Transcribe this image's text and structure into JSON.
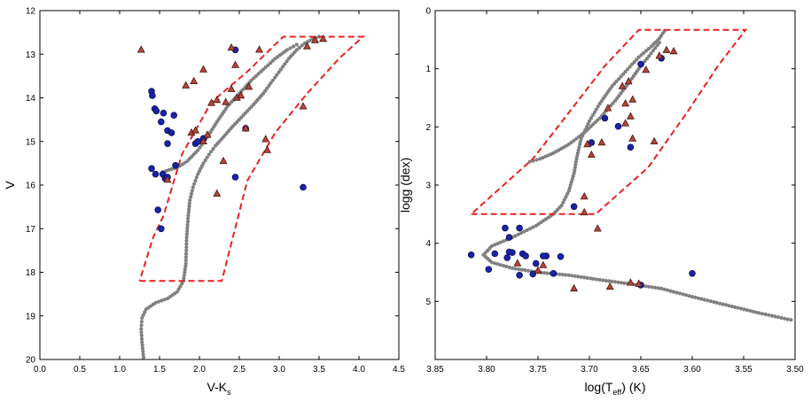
{
  "colors": {
    "track": "#808080",
    "box": "#e8211f",
    "circle_fill": "#1a23a8",
    "circle_edge": "#0b0f55",
    "triangle_fill": "#b5463a",
    "triangle_edge": "#4a1410"
  },
  "chart_data": [
    {
      "type": "scatter",
      "title": "",
      "xlabel_main": "V-K",
      "xlabel_sub": "s",
      "ylabel": "V",
      "xlim": [
        0.0,
        4.5
      ],
      "ylim": [
        20,
        12
      ],
      "x_ticks": [
        0.0,
        0.5,
        1.0,
        1.5,
        2.0,
        2.5,
        3.0,
        3.5,
        4.0,
        4.5
      ],
      "x_tick_labels": [
        "0.0",
        "0.5",
        "1.0",
        "1.5",
        "2.0",
        "2.5",
        "3.0",
        "3.5",
        "4.0",
        "4.5"
      ],
      "y_ticks": [
        12,
        13,
        14,
        15,
        16,
        17,
        18,
        19,
        20
      ],
      "y_tick_labels": [
        "12",
        "13",
        "14",
        "15",
        "16",
        "17",
        "18",
        "19",
        "20"
      ],
      "isochrone": [
        [
          1.3,
          19.95
        ],
        [
          1.28,
          19.6
        ],
        [
          1.27,
          19.3
        ],
        [
          1.28,
          19.05
        ],
        [
          1.33,
          18.85
        ],
        [
          1.45,
          18.7
        ],
        [
          1.6,
          18.6
        ],
        [
          1.72,
          18.45
        ],
        [
          1.8,
          18.2
        ],
        [
          1.83,
          17.8
        ],
        [
          1.84,
          17.2
        ],
        [
          1.86,
          16.7
        ],
        [
          1.88,
          16.35
        ],
        [
          1.92,
          16.05
        ],
        [
          1.98,
          15.75
        ],
        [
          2.05,
          15.5
        ],
        [
          2.12,
          15.3
        ],
        [
          2.2,
          15.1
        ],
        [
          2.3,
          14.9
        ],
        [
          2.42,
          14.65
        ],
        [
          2.55,
          14.4
        ],
        [
          2.68,
          14.15
        ],
        [
          2.8,
          13.9
        ],
        [
          2.92,
          13.6
        ],
        [
          3.02,
          13.35
        ],
        [
          3.12,
          13.1
        ],
        [
          3.22,
          12.9
        ],
        [
          3.32,
          12.75
        ],
        [
          3.42,
          12.65
        ],
        [
          3.5,
          12.6
        ]
      ],
      "branch": [
        [
          1.55,
          15.7
        ],
        [
          1.62,
          15.65
        ],
        [
          1.72,
          15.6
        ],
        [
          1.85,
          15.45
        ],
        [
          1.98,
          15.2
        ],
        [
          2.1,
          14.9
        ],
        [
          2.22,
          14.55
        ],
        [
          2.35,
          14.2
        ],
        [
          2.5,
          13.9
        ],
        [
          2.65,
          13.6
        ],
        [
          2.8,
          13.35
        ],
        [
          2.95,
          13.1
        ],
        [
          3.1,
          12.9
        ],
        [
          3.22,
          12.78
        ]
      ],
      "selection_box": [
        [
          1.25,
          18.2
        ],
        [
          2.28,
          18.2
        ],
        [
          2.6,
          15.9
        ],
        [
          2.95,
          14.8
        ],
        [
          3.35,
          13.9
        ],
        [
          3.75,
          13.1
        ],
        [
          4.05,
          12.6
        ],
        [
          3.05,
          12.6
        ],
        [
          2.6,
          13.4
        ],
        [
          2.15,
          14.1
        ],
        [
          1.78,
          15.3
        ],
        [
          1.55,
          16.7
        ],
        [
          1.42,
          17.2
        ],
        [
          1.25,
          18.2
        ]
      ],
      "series": [
        {
          "name": "circles",
          "marker": "circle",
          "points": [
            [
              1.4,
              13.85
            ],
            [
              1.41,
              13.95
            ],
            [
              1.44,
              14.25
            ],
            [
              1.46,
              14.3
            ],
            [
              1.52,
              14.55
            ],
            [
              1.55,
              14.35
            ],
            [
              1.6,
              14.75
            ],
            [
              1.6,
              15.05
            ],
            [
              1.65,
              14.8
            ],
            [
              1.68,
              14.4
            ],
            [
              1.4,
              15.62
            ],
            [
              1.45,
              15.75
            ],
            [
              1.54,
              15.75
            ],
            [
              1.57,
              15.85
            ],
            [
              1.6,
              15.82
            ],
            [
              1.7,
              15.55
            ],
            [
              1.95,
              15.05
            ],
            [
              1.98,
              15.0
            ],
            [
              2.05,
              14.93
            ],
            [
              2.45,
              12.9
            ],
            [
              2.58,
              14.7
            ],
            [
              2.45,
              15.82
            ],
            [
              3.3,
              16.05
            ],
            [
              1.48,
              16.57
            ],
            [
              1.52,
              17.0
            ]
          ]
        },
        {
          "name": "triangles",
          "marker": "triangle",
          "points": [
            [
              1.27,
              12.9
            ],
            [
              1.83,
              13.72
            ],
            [
              1.93,
              13.62
            ],
            [
              2.05,
              13.35
            ],
            [
              2.15,
              14.12
            ],
            [
              2.22,
              14.05
            ],
            [
              2.33,
              14.1
            ],
            [
              2.4,
              13.8
            ],
            [
              2.45,
              13.25
            ],
            [
              2.47,
              14.0
            ],
            [
              2.52,
              13.95
            ],
            [
              2.58,
              14.7
            ],
            [
              2.62,
              13.75
            ],
            [
              2.75,
              12.9
            ],
            [
              2.4,
              12.85
            ],
            [
              1.9,
              14.8
            ],
            [
              1.95,
              14.75
            ],
            [
              2.05,
              15.0
            ],
            [
              2.1,
              14.85
            ],
            [
              2.3,
              15.45
            ],
            [
              2.22,
              16.2
            ],
            [
              2.83,
              14.95
            ],
            [
              2.85,
              15.2
            ],
            [
              3.3,
              14.2
            ],
            [
              3.35,
              12.82
            ],
            [
              3.45,
              12.68
            ],
            [
              3.55,
              12.65
            ],
            [
              1.6,
              15.88
            ]
          ]
        }
      ]
    },
    {
      "type": "scatter",
      "title": "",
      "xlabel_main": "log(T",
      "xlabel_sub": "eff",
      "xlabel_end": ") (K)",
      "ylabel": "logg (dex)",
      "xlim": [
        3.85,
        3.5
      ],
      "ylim": [
        6,
        0
      ],
      "x_ticks": [
        3.85,
        3.8,
        3.75,
        3.7,
        3.65,
        3.6,
        3.55,
        3.5
      ],
      "x_tick_labels": [
        "3.85",
        "3.80",
        "3.75",
        "3.70",
        "3.65",
        "3.60",
        "3.55",
        "3.50"
      ],
      "y_ticks": [
        0,
        1,
        2,
        3,
        4,
        5
      ],
      "y_tick_labels": [
        "0",
        "1",
        "2",
        "3",
        "4",
        "5"
      ],
      "isochrone": [
        [
          3.504,
          5.32
        ],
        [
          3.535,
          5.2
        ],
        [
          3.57,
          5.05
        ],
        [
          3.6,
          4.92
        ],
        [
          3.63,
          4.78
        ],
        [
          3.66,
          4.7
        ],
        [
          3.69,
          4.63
        ],
        [
          3.72,
          4.55
        ],
        [
          3.75,
          4.5
        ],
        [
          3.775,
          4.43
        ],
        [
          3.795,
          4.33
        ],
        [
          3.803,
          4.2
        ],
        [
          3.795,
          4.05
        ],
        [
          3.775,
          3.9
        ],
        [
          3.752,
          3.7
        ],
        [
          3.735,
          3.5
        ],
        [
          3.727,
          3.35
        ],
        [
          3.72,
          3.1
        ],
        [
          3.715,
          2.8
        ],
        [
          3.712,
          2.5
        ],
        [
          3.708,
          2.2
        ],
        [
          3.7,
          1.9
        ],
        [
          3.69,
          1.6
        ],
        [
          3.678,
          1.3
        ],
        [
          3.665,
          1.05
        ],
        [
          3.652,
          0.8
        ],
        [
          3.64,
          0.62
        ],
        [
          3.632,
          0.48
        ],
        [
          3.627,
          0.35
        ]
      ],
      "branch": [
        [
          3.758,
          2.6
        ],
        [
          3.748,
          2.55
        ],
        [
          3.735,
          2.45
        ],
        [
          3.72,
          2.3
        ],
        [
          3.705,
          2.1
        ],
        [
          3.69,
          1.85
        ],
        [
          3.675,
          1.55
        ],
        [
          3.662,
          1.25
        ],
        [
          3.652,
          1.0
        ],
        [
          3.642,
          0.78
        ],
        [
          3.632,
          0.55
        ]
      ],
      "selection_box": [
        [
          3.815,
          3.5
        ],
        [
          3.694,
          3.5
        ],
        [
          3.643,
          2.7
        ],
        [
          3.605,
          1.75
        ],
        [
          3.575,
          0.95
        ],
        [
          3.548,
          0.33
        ],
        [
          3.652,
          0.33
        ],
        [
          3.685,
          0.95
        ],
        [
          3.722,
          1.8
        ],
        [
          3.755,
          2.55
        ],
        [
          3.815,
          3.5
        ]
      ],
      "series": [
        {
          "name": "circles",
          "marker": "circle",
          "points": [
            [
              3.65,
              0.92
            ],
            [
              3.63,
              0.82
            ],
            [
              3.685,
              1.85
            ],
            [
              3.672,
              1.99
            ],
            [
              3.698,
              2.27
            ],
            [
              3.66,
              2.35
            ],
            [
              3.715,
              3.37
            ],
            [
              3.782,
              3.74
            ],
            [
              3.768,
              3.74
            ],
            [
              3.778,
              3.9
            ],
            [
              3.815,
              4.2
            ],
            [
              3.792,
              4.18
            ],
            [
              3.775,
              4.16
            ],
            [
              3.778,
              4.15
            ],
            [
              3.765,
              4.18
            ],
            [
              3.78,
              4.25
            ],
            [
              3.762,
              4.22
            ],
            [
              3.752,
              4.35
            ],
            [
              3.742,
              4.22
            ],
            [
              3.745,
              4.22
            ],
            [
              3.728,
              4.23
            ],
            [
              3.798,
              4.45
            ],
            [
              3.768,
              4.55
            ],
            [
              3.755,
              4.53
            ],
            [
              3.735,
              4.52
            ],
            [
              3.65,
              4.72
            ],
            [
              3.6,
              4.52
            ]
          ]
        },
        {
          "name": "triangles",
          "marker": "triangle",
          "points": [
            [
              3.618,
              0.7
            ],
            [
              3.625,
              0.68
            ],
            [
              3.632,
              0.78
            ],
            [
              3.645,
              1.02
            ],
            [
              3.662,
              1.22
            ],
            [
              3.668,
              1.3
            ],
            [
              3.658,
              1.53
            ],
            [
              3.665,
              1.6
            ],
            [
              3.66,
              1.82
            ],
            [
              3.682,
              1.68
            ],
            [
              3.688,
              2.27
            ],
            [
              3.698,
              2.48
            ],
            [
              3.702,
              2.3
            ],
            [
              3.705,
              3.2
            ],
            [
              3.705,
              3.47
            ],
            [
              3.692,
              3.75
            ],
            [
              3.665,
              1.94
            ],
            [
              3.658,
              2.2
            ],
            [
              3.637,
              2.25
            ],
            [
              3.75,
              4.47
            ],
            [
              3.77,
              4.35
            ],
            [
              3.745,
              4.38
            ],
            [
              3.715,
              4.78
            ],
            [
              3.68,
              4.75
            ],
            [
              3.652,
              4.7
            ],
            [
              3.66,
              4.68
            ]
          ]
        }
      ]
    }
  ]
}
